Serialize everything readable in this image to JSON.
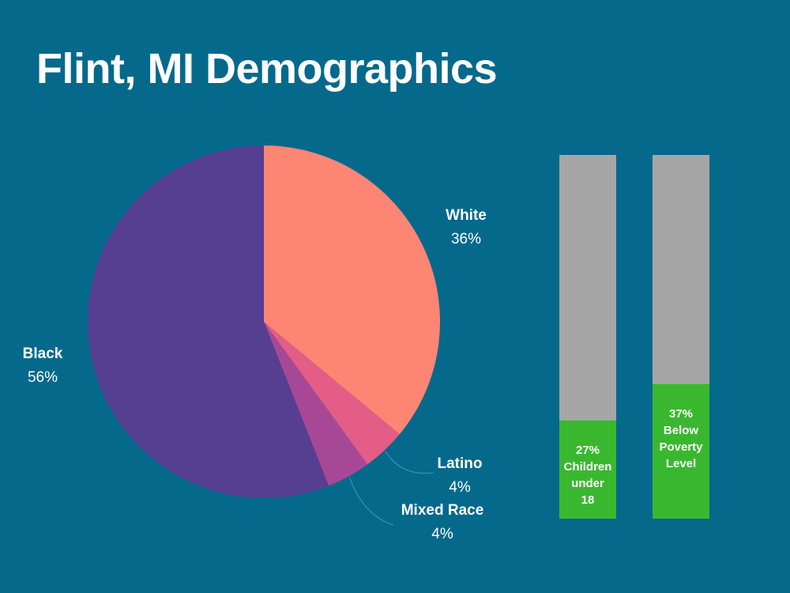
{
  "chart_data": [
    {
      "type": "pie",
      "title": "Flint, MI Demographics",
      "slices": [
        {
          "label": "White",
          "pct_text": "36%",
          "value": 36,
          "color": "#fd8573"
        },
        {
          "label": "Latino",
          "pct_text": "4%",
          "value": 4,
          "color": "#e45d86"
        },
        {
          "label": "Mixed Race",
          "pct_text": "4%",
          "value": 4,
          "color": "#a74896"
        },
        {
          "label": "Black",
          "pct_text": "56%",
          "value": 56,
          "color": "#563e91"
        }
      ]
    },
    {
      "type": "bar",
      "orientation": "vertical-stacked-percent",
      "bars": [
        {
          "pct_text": "27%",
          "lines": [
            "Children",
            "under",
            "18"
          ],
          "value": 27
        },
        {
          "pct_text": "37%",
          "lines": [
            "Below",
            "Poverty",
            "Level"
          ],
          "value": 37
        }
      ],
      "fill_color": "#39b82f",
      "track_color": "#a6a6a6",
      "ylim": [
        0,
        100
      ]
    }
  ],
  "colors": {
    "background": "#05698c",
    "leader_line": "#3c92ac"
  }
}
